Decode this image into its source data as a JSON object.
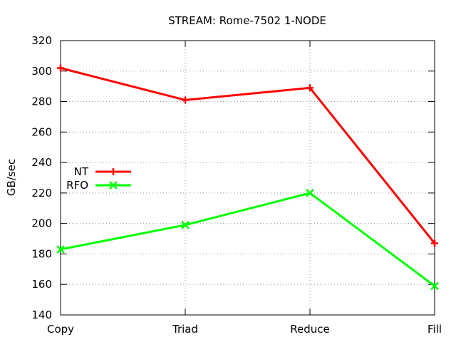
{
  "chart_data": {
    "type": "line",
    "title": "STREAM: Rome-7502 1-NODE",
    "xlabel": "",
    "ylabel": "GB/sec",
    "categories": [
      "Copy",
      "Triad",
      "Reduce",
      "Fill"
    ],
    "ylim": [
      140,
      320
    ],
    "yticks": [
      140,
      160,
      180,
      200,
      220,
      240,
      260,
      280,
      300,
      320
    ],
    "grid": true,
    "legend_position": "left",
    "series": [
      {
        "name": "NT",
        "color": "#ff0000",
        "marker": "plus",
        "values": [
          302,
          281,
          289,
          187
        ]
      },
      {
        "name": "RFO",
        "color": "#00ff00",
        "marker": "cross",
        "values": [
          183,
          199,
          220,
          159
        ]
      }
    ]
  }
}
